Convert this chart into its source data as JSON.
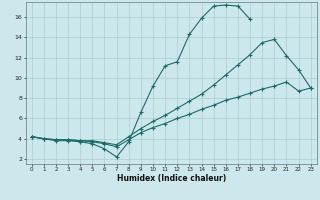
{
  "xlabel": "Humidex (Indice chaleur)",
  "bg_color": "#cce8ec",
  "grid_color": "#aacccc",
  "line_color": "#1a6b6b",
  "xlim": [
    -0.5,
    23.5
  ],
  "ylim": [
    1.5,
    17.5
  ],
  "xticks": [
    0,
    1,
    2,
    3,
    4,
    5,
    6,
    7,
    8,
    9,
    10,
    11,
    12,
    13,
    14,
    15,
    16,
    17,
    18,
    19,
    20,
    21,
    22,
    23
  ],
  "yticks": [
    2,
    4,
    6,
    8,
    10,
    12,
    14,
    16
  ],
  "curve1_x": [
    0,
    1,
    2,
    3,
    4,
    5,
    6,
    7,
    8,
    9,
    10,
    11,
    12,
    13,
    14,
    15,
    16,
    17,
    18
  ],
  "curve1_y": [
    4.2,
    4.0,
    3.8,
    3.8,
    3.7,
    3.5,
    3.0,
    2.2,
    3.7,
    6.6,
    9.2,
    11.2,
    11.6,
    14.3,
    15.9,
    17.1,
    17.2,
    17.1,
    15.8
  ],
  "curve2_x": [
    0,
    1,
    2,
    3,
    4,
    5,
    6,
    7,
    8,
    9,
    10,
    11,
    12,
    13,
    14,
    15,
    16,
    17,
    18,
    19,
    20,
    21,
    22,
    23
  ],
  "curve2_y": [
    4.2,
    4.0,
    3.9,
    3.9,
    3.8,
    3.7,
    3.5,
    3.2,
    3.9,
    4.6,
    5.1,
    5.5,
    6.0,
    6.4,
    6.9,
    7.3,
    7.8,
    8.1,
    8.5,
    8.9,
    9.2,
    9.6,
    8.7,
    9.0
  ],
  "curve3_x": [
    0,
    1,
    2,
    3,
    4,
    5,
    6,
    7,
    8,
    9,
    10,
    11,
    12,
    13,
    14,
    15,
    16,
    17,
    18,
    19,
    20,
    21,
    22,
    23
  ],
  "curve3_y": [
    4.2,
    4.0,
    3.9,
    3.9,
    3.8,
    3.8,
    3.6,
    3.4,
    4.2,
    5.0,
    5.7,
    6.3,
    7.0,
    7.7,
    8.4,
    9.3,
    10.3,
    11.3,
    12.3,
    13.5,
    13.8,
    12.2,
    10.8,
    9.0
  ]
}
